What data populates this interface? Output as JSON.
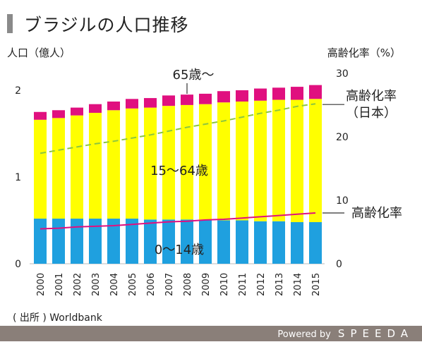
{
  "header": {
    "title": "ブラジルの人口推移"
  },
  "source": "( 出所 ) Worldbank",
  "footer": {
    "powered": "Powered by",
    "brand": "SPEEDA"
  },
  "colors": {
    "age_0_14": "#1fa0df",
    "age_15_64": "#ffff00",
    "age_65_plus": "#e0107f",
    "ratio_brazil": "#e0107f",
    "ratio_japan": "#8cc63f"
  },
  "chart_data": {
    "type": "bar",
    "stacked": true,
    "categories": [
      "2000",
      "2001",
      "2002",
      "2003",
      "2004",
      "2005",
      "2006",
      "2007",
      "2008",
      "2009",
      "2010",
      "2011",
      "2012",
      "2013",
      "2014",
      "2015"
    ],
    "left_axis": {
      "label": "人口（億人）",
      "ticks": [
        "0",
        "1",
        "2"
      ],
      "ylim": [
        0,
        2.0
      ]
    },
    "right_axis": {
      "label": "高齢化率（%）",
      "ticks": [
        "0",
        "10",
        "20",
        "30"
      ],
      "ylim": [
        0,
        30
      ]
    },
    "series": [
      {
        "name": "0〜14歳",
        "values": [
          0.52,
          0.52,
          0.52,
          0.52,
          0.52,
          0.52,
          0.51,
          0.51,
          0.51,
          0.5,
          0.5,
          0.5,
          0.49,
          0.49,
          0.48,
          0.48
        ]
      },
      {
        "name": "15〜64歳",
        "values": [
          1.14,
          1.16,
          1.19,
          1.22,
          1.25,
          1.27,
          1.29,
          1.31,
          1.32,
          1.34,
          1.36,
          1.37,
          1.39,
          1.4,
          1.41,
          1.42
        ]
      },
      {
        "name": "65歳〜",
        "values": [
          0.09,
          0.09,
          0.09,
          0.1,
          0.1,
          0.11,
          0.11,
          0.12,
          0.12,
          0.12,
          0.13,
          0.13,
          0.14,
          0.14,
          0.15,
          0.16
        ]
      }
    ],
    "lines": [
      {
        "name": "高齢化率",
        "axis": "right",
        "style": "solid",
        "values": [
          5.5,
          5.6,
          5.8,
          5.9,
          6.0,
          6.2,
          6.4,
          6.6,
          6.7,
          6.9,
          7.0,
          7.2,
          7.4,
          7.6,
          7.8,
          8.0
        ]
      },
      {
        "name": "高齢化率（日本）",
        "axis": "right",
        "style": "dashed",
        "values": [
          17.4,
          17.9,
          18.4,
          18.9,
          19.3,
          19.8,
          20.3,
          20.9,
          21.5,
          22.0,
          22.5,
          23.1,
          23.7,
          24.2,
          24.8,
          25.2
        ]
      }
    ],
    "annotations": {
      "label_65": "65歳〜",
      "label_15_64": "15〜64歳",
      "label_0_14": "0〜14歳",
      "label_japan": [
        "高齢化率",
        "（日本）"
      ],
      "label_brazil": "高齢化率"
    }
  }
}
